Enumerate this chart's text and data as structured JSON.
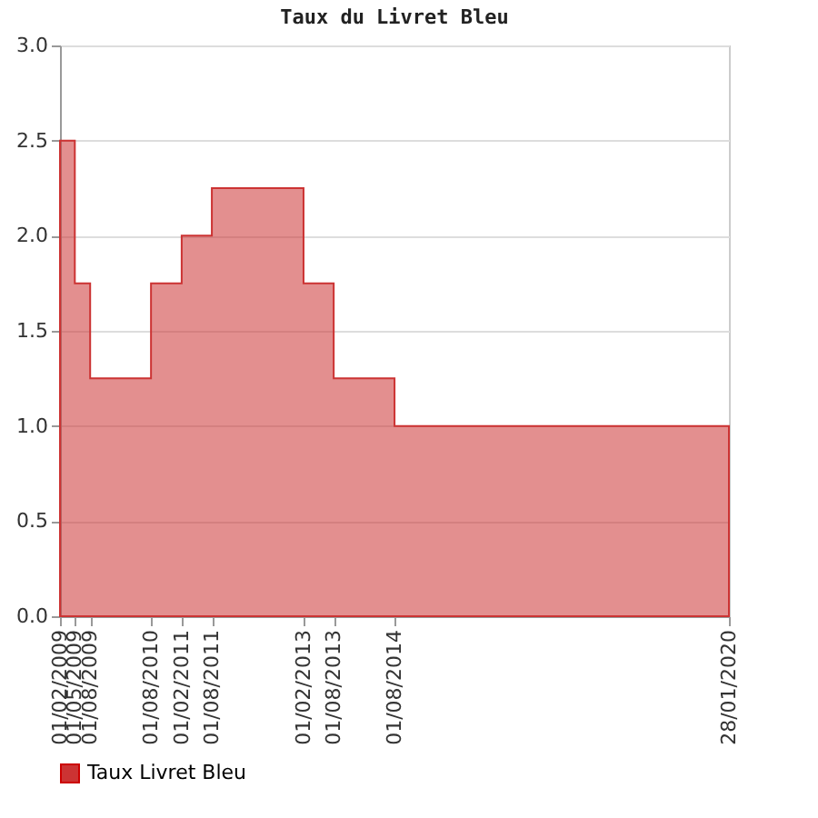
{
  "chart_data": {
    "type": "area",
    "title": "Taux du Livret Bleu",
    "x": [
      "2009-02-01",
      "2009-05-01",
      "2009-08-01",
      "2010-08-01",
      "2011-02-01",
      "2011-08-01",
      "2013-02-01",
      "2013-08-01",
      "2014-08-01",
      "2020-01-28"
    ],
    "series": [
      {
        "name": "Taux Livret Bleu",
        "color": "#cc3333",
        "values": [
          2.5,
          1.75,
          1.25,
          1.75,
          2.0,
          2.25,
          1.75,
          1.25,
          1.0,
          1.0
        ]
      }
    ],
    "line_style": "solid",
    "xlim": [
      "2009-02-01",
      "2020-01-28"
    ],
    "xticks": [
      {
        "value": "2009-02-01",
        "label": "01/02/2009"
      },
      {
        "value": "2009-05-01",
        "label": "01/05/2009"
      },
      {
        "value": "2009-08-01",
        "label": "01/08/2009"
      },
      {
        "value": "2010-08-01",
        "label": "01/08/2010"
      },
      {
        "value": "2011-02-01",
        "label": "01/02/2011"
      },
      {
        "value": "2011-08-01",
        "label": "01/08/2011"
      },
      {
        "value": "2013-02-01",
        "label": "01/02/2013"
      },
      {
        "value": "2013-08-01",
        "label": "01/08/2013"
      },
      {
        "value": "2014-08-01",
        "label": "01/08/2014"
      },
      {
        "value": "2020-01-28",
        "label": "28/01/2020"
      }
    ],
    "ylim": [
      0,
      3.0
    ],
    "yticks": [
      {
        "value": 0,
        "label": "0.0"
      },
      {
        "value": 0.5,
        "label": "0.5"
      },
      {
        "value": 1,
        "label": "1.0"
      },
      {
        "value": 1.5,
        "label": "1.5"
      },
      {
        "value": 2,
        "label": "2.0"
      },
      {
        "value": 2.5,
        "label": "2.5"
      },
      {
        "value": 3,
        "label": "3.0"
      }
    ],
    "grid": "y",
    "legend": "bottom"
  }
}
